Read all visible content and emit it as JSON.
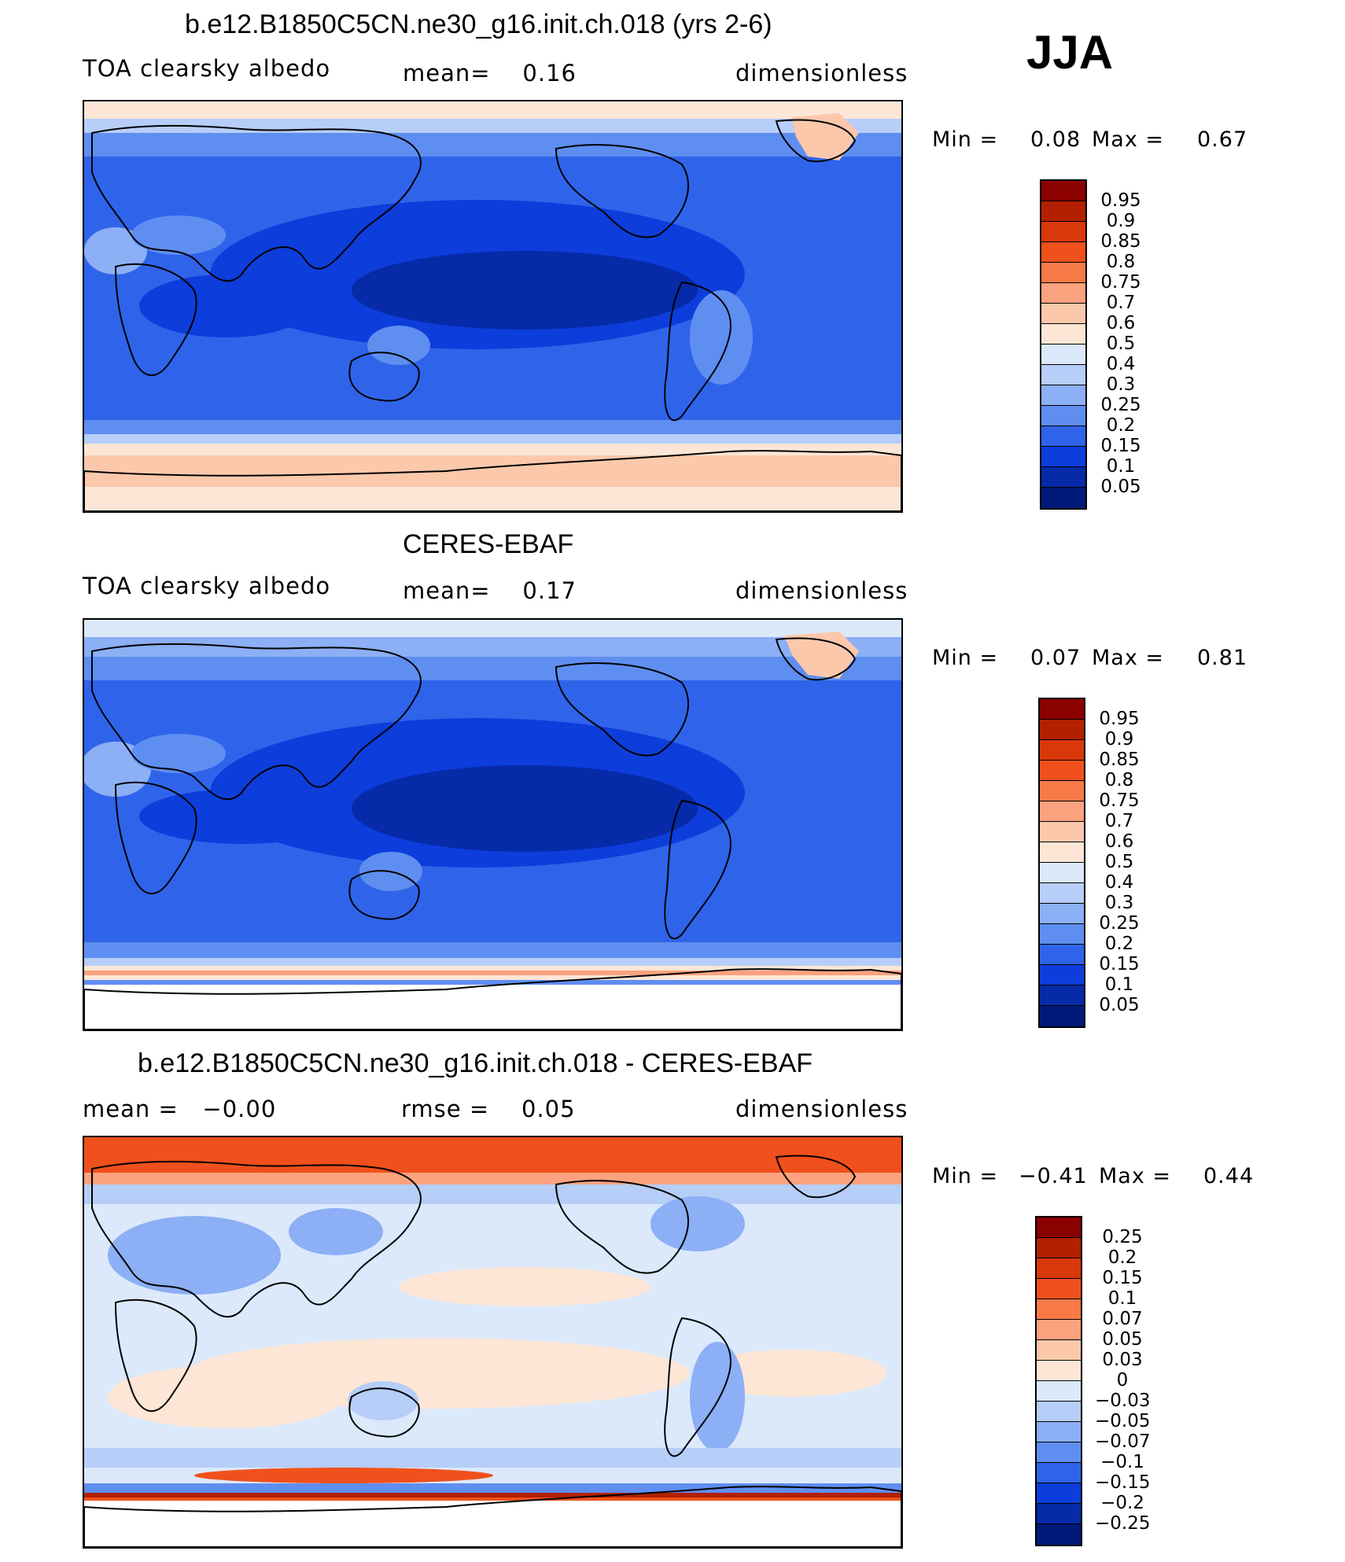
{
  "season": "JJA",
  "panels": [
    {
      "title": "b.e12.B1850C5CN.ne30_g16.init.ch.018 (yrs 2-6)",
      "left_label": "TOA clearsky albedo",
      "center_label": "mean=    0.16",
      "right_label": "dimensionless",
      "min_label": "Min =",
      "min_value": "0.08",
      "max_label": "Max =",
      "max_value": "0.67",
      "colorbar_ticks": [
        "0.95",
        "0.9",
        "0.85",
        "0.8",
        "0.75",
        "0.7",
        "0.6",
        "0.5",
        "0.4",
        "0.3",
        "0.25",
        "0.2",
        "0.15",
        "0.1",
        "0.05"
      ]
    },
    {
      "title": "CERES-EBAF",
      "left_label": "TOA clearsky albedo",
      "center_label": "mean=    0.17",
      "right_label": "dimensionless",
      "min_label": "Min =",
      "min_value": "0.07",
      "max_label": "Max =",
      "max_value": "0.81",
      "colorbar_ticks": [
        "0.95",
        "0.9",
        "0.85",
        "0.8",
        "0.75",
        "0.7",
        "0.6",
        "0.5",
        "0.4",
        "0.3",
        "0.25",
        "0.2",
        "0.15",
        "0.1",
        "0.05"
      ]
    },
    {
      "title": "b.e12.B1850C5CN.ne30_g16.init.ch.018 - CERES-EBAF",
      "left_label": "mean =   −0.00",
      "center_label": "rmse =    0.05",
      "right_label": "dimensionless",
      "min_label": "Min =",
      "min_value": "−0.41",
      "max_label": "Max =",
      "max_value": "0.44",
      "colorbar_ticks": [
        "0.25",
        "0.2",
        "0.15",
        "0.1",
        "0.07",
        "0.05",
        "0.03",
        "0",
        "−0.03",
        "−0.05",
        "−0.07",
        "−0.1",
        "−0.15",
        "−0.2",
        "−0.25"
      ]
    }
  ],
  "colors": {
    "palette_top_to_bottom": [
      "#8b0000",
      "#b22000",
      "#d9380a",
      "#f0501c",
      "#f77a48",
      "#fba27e",
      "#fcc8ac",
      "#fde6d6",
      "#dbe9fb",
      "#b6cef8",
      "#8caff5",
      "#5f8ef1",
      "#2f64ea",
      "#0d3ddb",
      "#062aa8",
      "#001a7a"
    ],
    "land_outline": "#000000"
  }
}
